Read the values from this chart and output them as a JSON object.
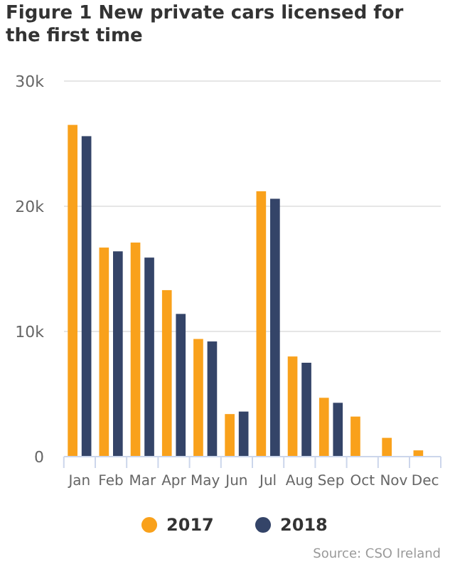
{
  "chart_data": {
    "type": "bar",
    "title": "Figure 1 New private cars licensed for the first time",
    "categories": [
      "Jan",
      "Feb",
      "Mar",
      "Apr",
      "May",
      "Jun",
      "Jul",
      "Aug",
      "Sep",
      "Oct",
      "Nov",
      "Dec"
    ],
    "series": [
      {
        "name": "2017",
        "color": "#f9a11b",
        "values": [
          26500,
          16700,
          17100,
          13300,
          9400,
          3400,
          21200,
          8000,
          4700,
          3200,
          1500,
          500
        ]
      },
      {
        "name": "2018",
        "color": "#344468",
        "values": [
          25600,
          16400,
          15900,
          11400,
          9200,
          3600,
          20600,
          7500,
          4300,
          null,
          null,
          null
        ]
      }
    ],
    "ylim": [
      0,
      30000
    ],
    "yticks": [
      0,
      {
        "value": 10000,
        "label": "10k"
      },
      {
        "value": 20000,
        "label": "20k"
      },
      {
        "value": 30000,
        "label": "30k"
      }
    ],
    "grid": "y",
    "legend": "bottom",
    "annotations": [
      "Source: CSO Ireland"
    ]
  }
}
